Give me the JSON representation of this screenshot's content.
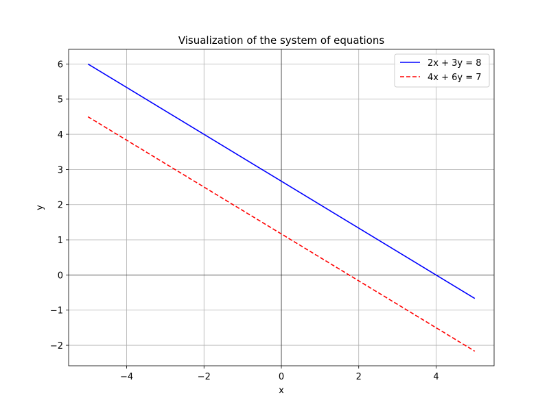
{
  "chart_data": {
    "type": "line",
    "title": "Visualization of the system of equations",
    "xlabel": "x",
    "ylabel": "y",
    "xlim": [
      -5.5,
      5.5
    ],
    "ylim": [
      -2.583,
      6.417
    ],
    "xticks": [
      -4,
      -2,
      0,
      2,
      4
    ],
    "yticks": [
      -2,
      -1,
      0,
      1,
      2,
      3,
      4,
      5,
      6
    ],
    "xtick_labels": [
      "−4",
      "−2",
      "0",
      "2",
      "4"
    ],
    "ytick_labels": [
      "−2",
      "−1",
      "0",
      "1",
      "2",
      "3",
      "4",
      "5",
      "6"
    ],
    "grid": true,
    "zero_lines": true,
    "legend": "top-right",
    "series": [
      {
        "name": "2x + 3y = 8",
        "x": [
          -5,
          5
        ],
        "y": [
          6.0,
          -0.667
        ],
        "color": "#0000ff",
        "style": "solid"
      },
      {
        "name": "4x + 6y = 7",
        "x": [
          -5,
          5
        ],
        "y": [
          4.5,
          -2.167
        ],
        "color": "#ff0000",
        "style": "dashed"
      }
    ]
  }
}
